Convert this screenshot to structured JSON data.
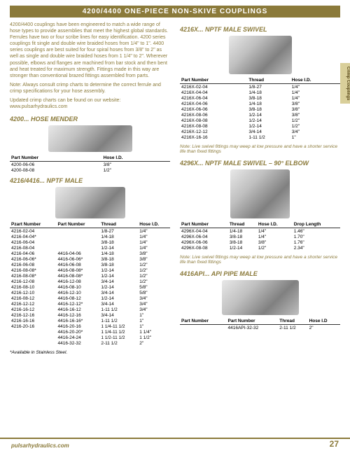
{
  "header": "4200/4400 ONE-PIECE NON-SKIVE COUPLINGS",
  "intro": {
    "p1": "4200/4400 couplings have been engineered to match a wide range of hose types to provide assemblies that meet the highest global standards. Ferrules have two or four scribe lines for easy identification. 4200 series couplings fit single and double wire braided hoses from 1/4\" to 1\". 4400 series couplings are best suited for four spiral hoses from 3/8\" to 2\" as well as single and double wire braided hoses from 1 1/4\" to 2\". Wherever possible, elbows and flanges are machined from bar stock and then bent and heat treated for maximum strength. Fittings made in this way are stronger than conventional brazed fittings assembled from parts.",
    "p2": "Note: Always consult crimp charts to determine the correct ferrule and crimp specifications for your hose assembly.",
    "p3": "Updated crimp charts can be found on our website: www.pulsarhydraulics.com"
  },
  "tab": "Crimp Couplings",
  "s4200": {
    "title": "4200... HOSE MENDER",
    "cols": [
      "Part Number",
      "Hose I.D."
    ],
    "rows": [
      [
        "4200-06-06",
        "3/8\""
      ],
      [
        "4200-08-08",
        "1/2\""
      ]
    ]
  },
  "s4216": {
    "title": "4216/4416... NPTF MALE",
    "cols": [
      "Pzart Number",
      "Part Number",
      "Thread",
      "Hose I.D."
    ],
    "rows": [
      [
        "4216-02-04",
        "",
        "1/8-27",
        "1/4\""
      ],
      [
        "4216-04-04*",
        "",
        "1/4-18",
        "1/4\""
      ],
      [
        "4216-06-04",
        "",
        "3/8-18",
        "1/4\""
      ],
      [
        "4216-08-04",
        "",
        "1/2-14",
        "1/4\""
      ],
      [
        "4216-04-06",
        "4416-04-06",
        "1/4-18",
        "3/8\""
      ],
      [
        "4216-06-06*",
        "4416-06-06*",
        "3/8-18",
        "3/8\""
      ],
      [
        "4216-06-08",
        "4416-06-08",
        "3/8-18",
        "1/2\""
      ],
      [
        "4216-08-08*",
        "4416-08-08*",
        "1/2-14",
        "1/2\""
      ],
      [
        "4216-08-08*",
        "4416-08-08*",
        "1/2-14",
        "1/2\""
      ],
      [
        "4216-12-08",
        "4416-12-08",
        "3/4-14",
        "1/2\""
      ],
      [
        "4216-08-10",
        "4416-08-10",
        "1/2-14",
        "5/8\""
      ],
      [
        "4216-12-10",
        "4416-12-10",
        "3/4-14",
        "5/8\""
      ],
      [
        "4216-08-12",
        "4416-08-12",
        "1/2-14",
        "3/4\""
      ],
      [
        "4216-12-12",
        "4416-12-12*",
        "3/4-14",
        "3/4\""
      ],
      [
        "4216-16-12",
        "4416-16-12",
        "1-11 1/2",
        "3/4\""
      ],
      [
        "4216-12-16",
        "4416-12-16",
        "3/4-14",
        "1\""
      ],
      [
        "4216-16-16",
        "4416-16-16*",
        "1-11 1/2",
        "1\""
      ],
      [
        "4216-20-16",
        "4416-20-16",
        "1 1/4-11 1/2",
        "1\""
      ],
      [
        "",
        "4416-20-20*",
        "1 1/4-11 1/2",
        "1 1/4\""
      ],
      [
        "",
        "4416-24-24",
        "1 1/2-11 1/2",
        "1 1/2\""
      ],
      [
        "",
        "4416-32-32",
        "2-11 1/2",
        "2\""
      ]
    ],
    "foot": "*Available in Stainless Steel."
  },
  "s4216X": {
    "title": "4216X... NPTF MALE SWIVEL",
    "cols": [
      "Part Number",
      "Thread",
      "Hose I.D."
    ],
    "rows": [
      [
        "4216X-02-04",
        "1/8-27",
        "1/4\""
      ],
      [
        "4216X-04-04",
        "1/4-18",
        "1/4\""
      ],
      [
        "4216X-06-04",
        "3/8-18",
        "1/4\""
      ],
      [
        "4216X-04-06",
        "1/4-18",
        "3/8\""
      ],
      [
        "4216X-06-06",
        "3/8-18",
        "3/8\""
      ],
      [
        "4216X-08-06",
        "1/2-14",
        "3/8\""
      ],
      [
        "4216X-08-08",
        "1/2-14",
        "1/2\""
      ],
      [
        "4216X-08-08",
        "1/2-14",
        "1/2\""
      ],
      [
        "4216X-12-12",
        "3/4-14",
        "3/4\""
      ],
      [
        "4216X-16-16",
        "1-11 1/2",
        "1\""
      ]
    ],
    "note": "Note: Live swivel fittings may weep at low pressure and have a shorter service life than fixed fittings"
  },
  "s4296X": {
    "title": "4296X... NPTF MALE SWIVEL – 90° ELBOW",
    "cols": [
      "Part Number",
      "Thread",
      "Hose I.D.",
      "Drop Length"
    ],
    "rows": [
      [
        "4296X-04-04",
        "1/4-18",
        "1/4\"",
        "1.46\""
      ],
      [
        "4296X-06-04",
        "3/8-18",
        "1/4\"",
        "1.70\""
      ],
      [
        "4296X-06-06",
        "3/8-18",
        "3/8\"",
        "1.76\""
      ],
      [
        "4296X-08-08",
        "1/2-14",
        "1/2\"",
        "2.34\""
      ]
    ],
    "note": "Note: Live swivel fittings may weep at low pressure and have a shorter service life than fixed fittings"
  },
  "s4416API": {
    "title": "4416API... API PIPE MALE",
    "cols": [
      "Part Number",
      "Part Number",
      "Thread",
      "Hose I.D"
    ],
    "rows": [
      [
        "",
        "4416API-32-32",
        "2-11 1/2",
        "2\""
      ]
    ]
  },
  "footer": {
    "url": "pulsarhydraulics.com",
    "page": "27"
  }
}
